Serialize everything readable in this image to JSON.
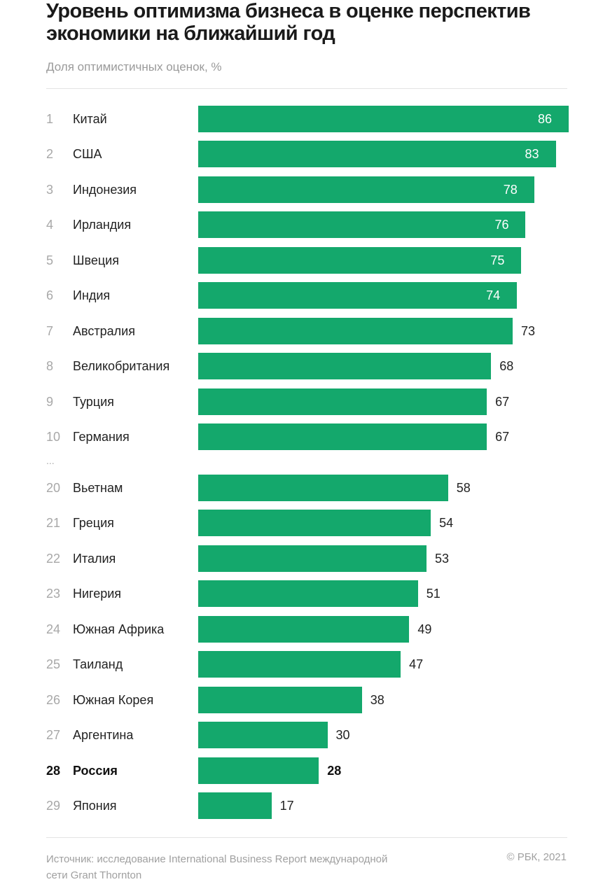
{
  "chart_data": {
    "type": "bar",
    "orientation": "horizontal",
    "title": "Уровень оптимизма бизнеса в оценке перспектив экономики на ближайший год",
    "subtitle": "Доля оптимистичных оценок, %",
    "xlim": [
      0,
      86
    ],
    "grid": false,
    "bar_color": "#14a86c",
    "highlight": "Россия",
    "ellipsis": "...",
    "rows": [
      {
        "rank": "1",
        "country": "Китай",
        "value": 86
      },
      {
        "rank": "2",
        "country": "США",
        "value": 83
      },
      {
        "rank": "3",
        "country": "Индонезия",
        "value": 78
      },
      {
        "rank": "4",
        "country": "Ирландия",
        "value": 76
      },
      {
        "rank": "5",
        "country": "Швеция",
        "value": 75
      },
      {
        "rank": "6",
        "country": "Индия",
        "value": 74
      },
      {
        "rank": "7",
        "country": "Австралия",
        "value": 73
      },
      {
        "rank": "8",
        "country": "Великобритания",
        "value": 68
      },
      {
        "rank": "9",
        "country": "Турция",
        "value": 67
      },
      {
        "rank": "10",
        "country": "Германия",
        "value": 67
      },
      {
        "rank": "20",
        "country": "Вьетнам",
        "value": 58
      },
      {
        "rank": "21",
        "country": "Греция",
        "value": 54
      },
      {
        "rank": "22",
        "country": "Италия",
        "value": 53
      },
      {
        "rank": "23",
        "country": "Нигерия",
        "value": 51
      },
      {
        "rank": "24",
        "country": "Южная Африка",
        "value": 49
      },
      {
        "rank": "25",
        "country": "Таиланд",
        "value": 47
      },
      {
        "rank": "26",
        "country": "Южная Корея",
        "value": 38
      },
      {
        "rank": "27",
        "country": "Аргентина",
        "value": 30
      },
      {
        "rank": "28",
        "country": "Россия",
        "value": 28
      },
      {
        "rank": "29",
        "country": "Япония",
        "value": 17
      }
    ]
  },
  "footer": {
    "source": "Источник: исследование International Business Report международной сети Grant Thornton",
    "copyright": "© РБК, 2021"
  }
}
